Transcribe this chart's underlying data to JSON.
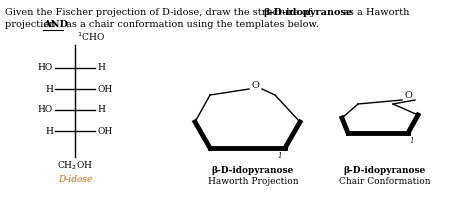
{
  "bg_color": "#ffffff",
  "text_color": "#000000",
  "fischer_label_color": "#cc6600",
  "haworth_label1": "β-D-idopyranose",
  "haworth_label2": "Haworth Projection",
  "chair_label1": "β-D-idopyranose",
  "chair_label2": "Chair Conformation",
  "fischer_label": "D-idose",
  "row_labels_left": [
    "HO",
    "H",
    "HO",
    "H"
  ],
  "row_labels_right": [
    "H",
    "OH",
    "H",
    "OH"
  ]
}
